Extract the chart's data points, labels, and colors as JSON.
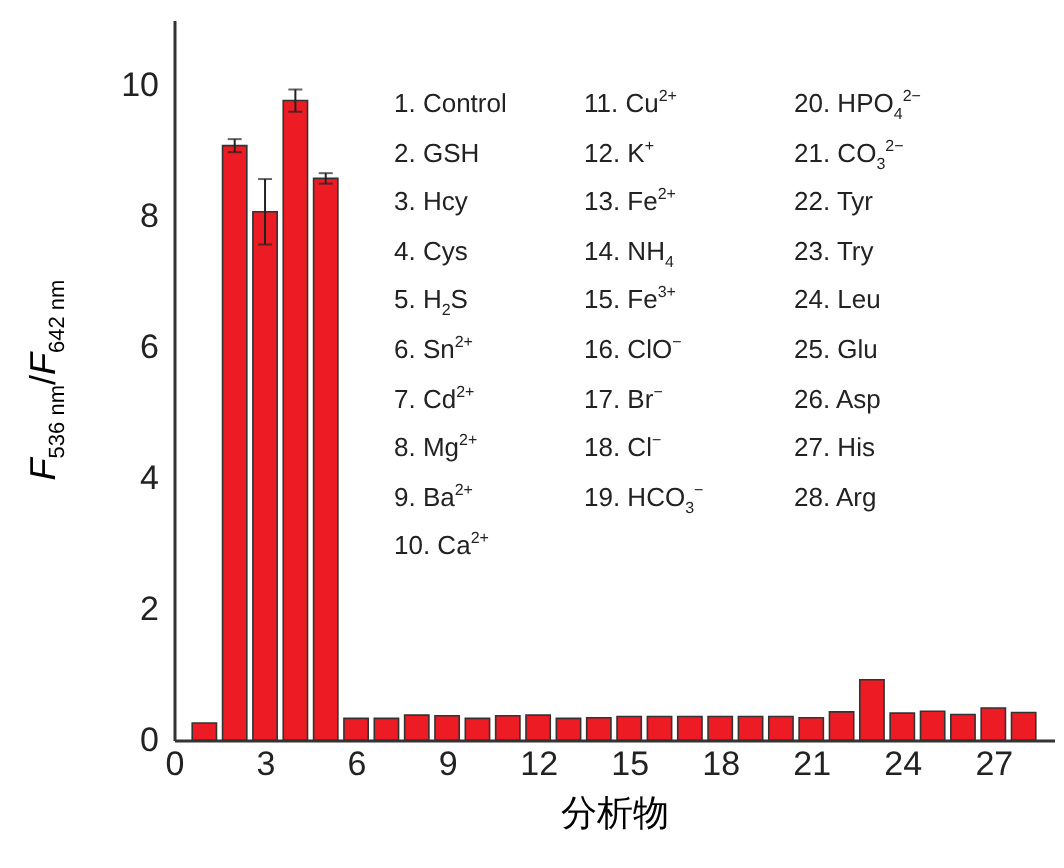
{
  "chart_data": {
    "type": "bar",
    "xlabel": "分析物",
    "ylabel": "F$_{536 nm}$/F$_{642 nm}$",
    "x": [
      1,
      2,
      3,
      4,
      5,
      6,
      7,
      8,
      9,
      10,
      11,
      12,
      13,
      14,
      15,
      16,
      17,
      18,
      19,
      20,
      21,
      22,
      23,
      24,
      25,
      26,
      27,
      28
    ],
    "values": [
      0.26,
      9.08,
      8.07,
      9.77,
      8.58,
      0.33,
      0.33,
      0.38,
      0.37,
      0.33,
      0.37,
      0.38,
      0.33,
      0.34,
      0.36,
      0.36,
      0.36,
      0.36,
      0.36,
      0.36,
      0.34,
      0.43,
      0.92,
      0.41,
      0.44,
      0.39,
      0.49,
      0.42
    ],
    "errors": [
      null,
      0.1,
      0.5,
      0.17,
      0.08,
      null,
      null,
      null,
      null,
      null,
      null,
      null,
      null,
      null,
      null,
      null,
      null,
      null,
      null,
      null,
      null,
      null,
      null,
      null,
      null,
      null,
      null,
      null
    ],
    "color": "#ed1c24",
    "xlim": [
      0,
      29
    ],
    "xticks": [
      0,
      3,
      6,
      9,
      12,
      15,
      18,
      21,
      24,
      27
    ],
    "ylim": [
      0,
      11
    ],
    "yticks": [
      0,
      2,
      4,
      6,
      8,
      10
    ],
    "grid": false,
    "annotations": [
      "1. Control",
      "2. GSH",
      "3. Hcy",
      "4. Cys",
      "5. H$_{2}$S",
      "6. Sn$^{2+}$",
      "7. Cd$^{2+}$",
      "8. Mg$^{2+}$",
      "9. Ba$^{2+}$",
      "10. Ca$^{2+}$",
      "11. Cu$^{2+}$",
      "12. K$^{+}$",
      "13. Fe$^{2+}$",
      "14. NH$_{4}$",
      "15. Fe$^{3+}$",
      "16. ClO$^{−}$",
      "17. Br$^{−}$",
      "18. Cl$^{−}$",
      "19. HCO$_{3}$$^{−}$",
      "20. HPO$_{4}$$^{2−}$",
      "21. CO$_{3}$$^{2−}$",
      "22. Tyr",
      "23. Try",
      "24. Leu",
      "25. Glu",
      "26. Asp",
      "27. His",
      "28. Arg"
    ]
  }
}
